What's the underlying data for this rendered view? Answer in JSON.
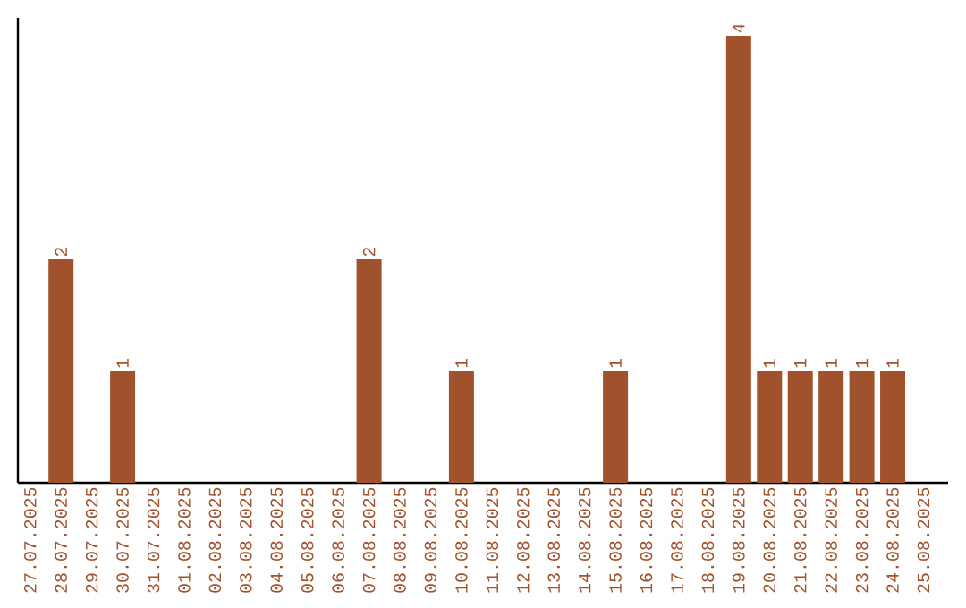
{
  "chart_data": {
    "type": "bar",
    "categories": [
      "27.07.2025",
      "28.07.2025",
      "29.07.2025",
      "30.07.2025",
      "31.07.2025",
      "01.08.2025",
      "02.08.2025",
      "03.08.2025",
      "04.08.2025",
      "05.08.2025",
      "06.08.2025",
      "07.08.2025",
      "08.08.2025",
      "09.08.2025",
      "10.08.2025",
      "11.08.2025",
      "12.08.2025",
      "13.08.2025",
      "14.08.2025",
      "15.08.2025",
      "16.08.2025",
      "17.08.2025",
      "18.08.2025",
      "19.08.2025",
      "20.08.2025",
      "21.08.2025",
      "22.08.2025",
      "23.08.2025",
      "24.08.2025",
      "25.08.2025"
    ],
    "values": [
      0,
      2,
      0,
      1,
      0,
      0,
      0,
      0,
      0,
      0,
      0,
      2,
      0,
      0,
      1,
      0,
      0,
      0,
      0,
      1,
      0,
      0,
      0,
      4,
      1,
      1,
      1,
      1,
      1,
      0
    ],
    "value_labels": [
      null,
      "2",
      null,
      "1",
      null,
      null,
      null,
      null,
      null,
      null,
      null,
      "2",
      null,
      null,
      "1",
      null,
      null,
      null,
      null,
      "1",
      null,
      null,
      null,
      "4",
      "1",
      "1",
      "1",
      "1",
      "1",
      null
    ],
    "color": "#a0522d"
  }
}
